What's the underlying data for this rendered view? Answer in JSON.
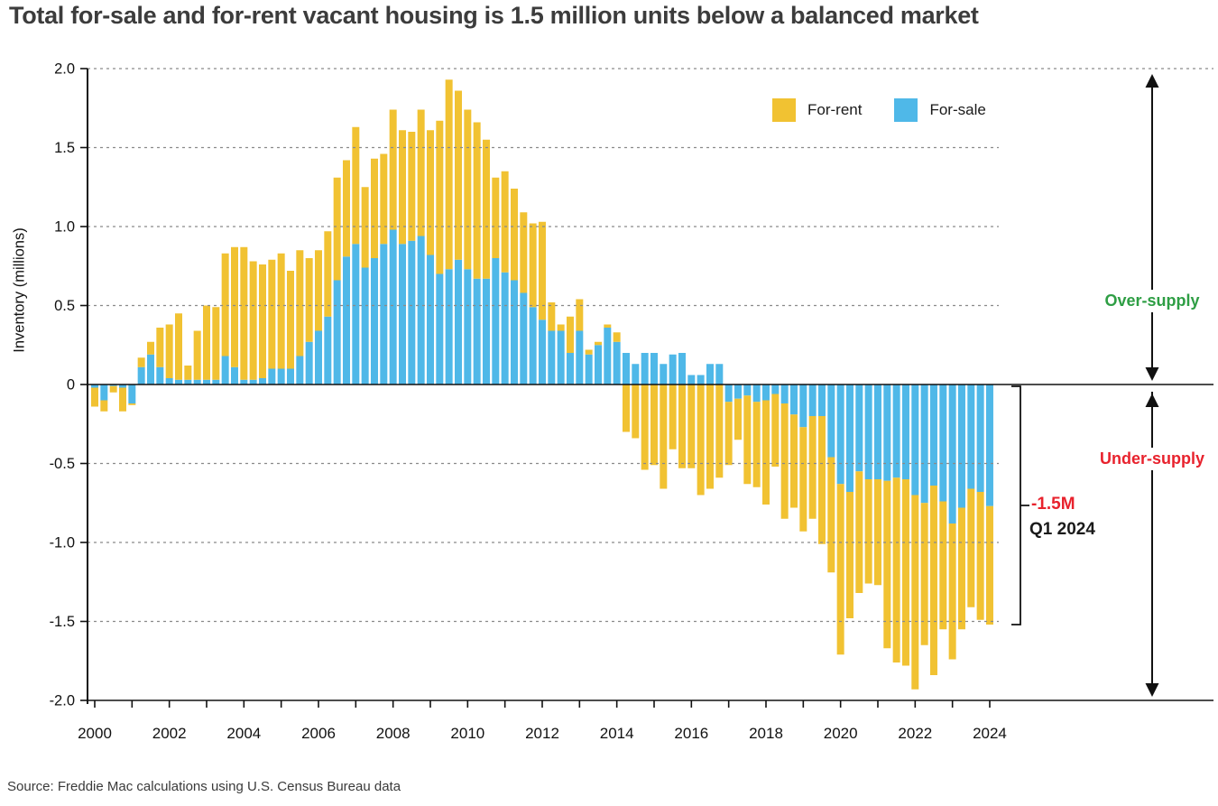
{
  "title": "Total for-sale and for-rent vacant housing is 1.5 million units below a balanced market",
  "source": "Source: Freddie Mac calculations using U.S. Census Bureau data",
  "legend": [
    {
      "label": "For-rent",
      "color": "#F1C232"
    },
    {
      "label": "For-sale",
      "color": "#4FB8E8"
    }
  ],
  "annotations": {
    "over_supply": {
      "label": "Over-supply",
      "color": "#2E9E44"
    },
    "under_supply": {
      "label": "Under-supply",
      "color": "#E8222D"
    },
    "callout": {
      "value": "-1.5M",
      "value_color": "#E8222D",
      "period": "Q1 2024",
      "period_color": "#1a1a1a"
    }
  },
  "chart_data": {
    "type": "bar",
    "stacked": true,
    "frequency": "quarterly",
    "x_start": "2000 Q1",
    "x_end": "2024 Q1",
    "title": "Total for-sale and for-rent vacant housing is 1.5 million units below a balanced market",
    "xlabel": "",
    "ylabel": "Inventory (millions)",
    "ylim": [
      -2.0,
      2.0
    ],
    "grid": "dashed horizontal every 0.5",
    "legend_position": "top-right",
    "ytick_labels": [
      "2.0",
      "1.5",
      "1.0",
      "0.5",
      "0",
      "-0.5",
      "-1.0",
      "-1.5",
      "-2.0"
    ],
    "xtick_labels": [
      "2000",
      "2002",
      "2004",
      "2006",
      "2008",
      "2010",
      "2012",
      "2014",
      "2016",
      "2018",
      "2020",
      "2022",
      "2024"
    ],
    "stack_order": [
      "For-sale",
      "For-rent"
    ],
    "series": [
      {
        "name": "For-rent",
        "color": "#F1C232",
        "values": [
          -0.12,
          -0.07,
          -0.04,
          -0.15,
          -0.01,
          0.06,
          0.08,
          0.25,
          0.34,
          0.42,
          0.09,
          0.31,
          0.47,
          0.46,
          0.65,
          0.76,
          0.84,
          0.75,
          0.72,
          0.69,
          0.73,
          0.62,
          0.67,
          0.53,
          0.51,
          0.54,
          0.65,
          0.61,
          0.74,
          0.51,
          0.63,
          0.57,
          0.76,
          0.72,
          0.69,
          0.8,
          0.79,
          0.97,
          1.2,
          1.07,
          1.01,
          0.99,
          0.88,
          0.51,
          0.64,
          0.58,
          0.51,
          0.53,
          0.62,
          0.18,
          0.04,
          0.23,
          0.2,
          0.03,
          0.02,
          0.02,
          0.06,
          -0.3,
          -0.34,
          -0.54,
          -0.51,
          -0.66,
          -0.41,
          -0.53,
          -0.53,
          -0.7,
          -0.66,
          -0.59,
          -0.4,
          -0.26,
          -0.56,
          -0.54,
          -0.66,
          -0.46,
          -0.73,
          -0.59,
          -0.66,
          -0.65,
          -0.81,
          -0.73,
          -1.08,
          -0.8,
          -0.77,
          -0.66,
          -0.67,
          -1.06,
          -1.17,
          -1.18,
          -1.23,
          -0.9,
          -1.2,
          -0.81,
          -0.86,
          -0.77,
          -0.75,
          -0.81,
          -0.75
        ]
      },
      {
        "name": "For-sale",
        "color": "#4FB8E8",
        "values": [
          -0.02,
          -0.1,
          -0.01,
          -0.02,
          -0.12,
          0.11,
          0.19,
          0.11,
          0.04,
          0.03,
          0.03,
          0.03,
          0.03,
          0.03,
          0.18,
          0.11,
          0.03,
          0.03,
          0.04,
          0.1,
          0.1,
          0.1,
          0.18,
          0.27,
          0.34,
          0.43,
          0.66,
          0.81,
          0.89,
          0.74,
          0.8,
          0.89,
          0.98,
          0.89,
          0.91,
          0.94,
          0.82,
          0.7,
          0.73,
          0.79,
          0.73,
          0.67,
          0.67,
          0.8,
          0.71,
          0.66,
          0.58,
          0.49,
          0.41,
          0.34,
          0.34,
          0.2,
          0.34,
          0.19,
          0.25,
          0.36,
          0.27,
          0.2,
          0.13,
          0.2,
          0.2,
          0.13,
          0.19,
          0.2,
          0.06,
          0.06,
          0.13,
          0.13,
          -0.11,
          -0.09,
          -0.07,
          -0.11,
          -0.1,
          -0.06,
          -0.12,
          -0.19,
          -0.27,
          -0.2,
          -0.2,
          -0.46,
          -0.63,
          -0.68,
          -0.55,
          -0.6,
          -0.6,
          -0.61,
          -0.59,
          -0.6,
          -0.7,
          -0.75,
          -0.64,
          -0.74,
          -0.88,
          -0.78,
          -0.66,
          -0.68,
          -0.77
        ]
      }
    ]
  }
}
